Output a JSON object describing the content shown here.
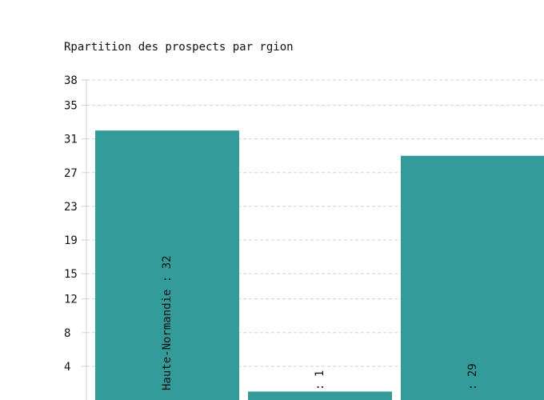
{
  "chart_data": {
    "type": "bar",
    "title": "Rpartition des prospects par rgion",
    "categories": [
      "Haute-Normandie",
      "",
      ""
    ],
    "values": [
      32,
      1,
      29
    ],
    "bar_labels": [
      "Haute-Normandie : 32",
      " : 1",
      " : 29"
    ],
    "ylim": [
      0,
      38
    ],
    "yticks": [
      4,
      8,
      12,
      15,
      19,
      23,
      27,
      31,
      35,
      38
    ],
    "grid": true,
    "legend": "none",
    "bar_color": "#339b99",
    "grid_color": "#cfcfcf"
  }
}
